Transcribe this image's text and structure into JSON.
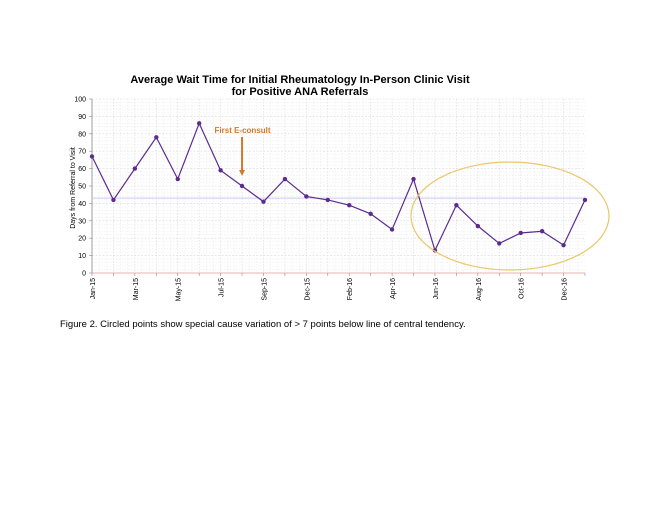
{
  "chart_data": {
    "type": "line",
    "title": [
      "Average Wait Time for Initial Rheumatology In-Person Clinic Visit",
      "for Positive ANA Referrals"
    ],
    "xlabel": "",
    "ylabel": "Days from Referral to Visit",
    "ylim": [
      0,
      100
    ],
    "yticks": [
      0,
      10,
      20,
      30,
      40,
      50,
      60,
      70,
      80,
      90,
      100
    ],
    "grid": true,
    "x": [
      "Jan-15",
      "Feb-15",
      "Mar-15",
      "Apr-15",
      "May-15",
      "Jun-15",
      "Jul-15",
      "Aug-15",
      "Sep-15",
      "Oct-15",
      "Dec-15",
      "Jan-16",
      "Feb-16",
      "Mar-16",
      "Apr-16",
      "May-16",
      "Jun-16",
      "Jul-16",
      "Aug-16",
      "Sep-16",
      "Oct-16",
      "Nov-16",
      "Dec-16",
      "Jan-17"
    ],
    "xtick_labels": [
      "Jan-15",
      "",
      "Mar-15",
      "",
      "May-15",
      "",
      "Jul-15",
      "",
      "Sep-15",
      "",
      "Dec-15",
      "",
      "Feb-16",
      "",
      "Apr-16",
      "",
      "Jun-16",
      "",
      "Aug-16",
      "",
      "Oct-16",
      "",
      "Dec-16",
      ""
    ],
    "series": [
      {
        "name": "Average wait time",
        "color": "#5b2c8d",
        "values": [
          67,
          42,
          60,
          78,
          54,
          86,
          59,
          50,
          41,
          54,
          44,
          42,
          39,
          34,
          25,
          54,
          13,
          39,
          27,
          17,
          23,
          24,
          16,
          42
        ]
      }
    ],
    "center_line": {
      "value": 43,
      "color": "#c9c9f2"
    },
    "annotation": {
      "text": "First E-consult",
      "color": "#d27a2a",
      "at": "Aug-15"
    },
    "highlight_region": {
      "from": "Jun-16",
      "to": "Jan-17",
      "color": "#ecc76a"
    }
  },
  "caption": "Figure 2. Circled points show special cause variation of > 7 points below line of central tendency."
}
